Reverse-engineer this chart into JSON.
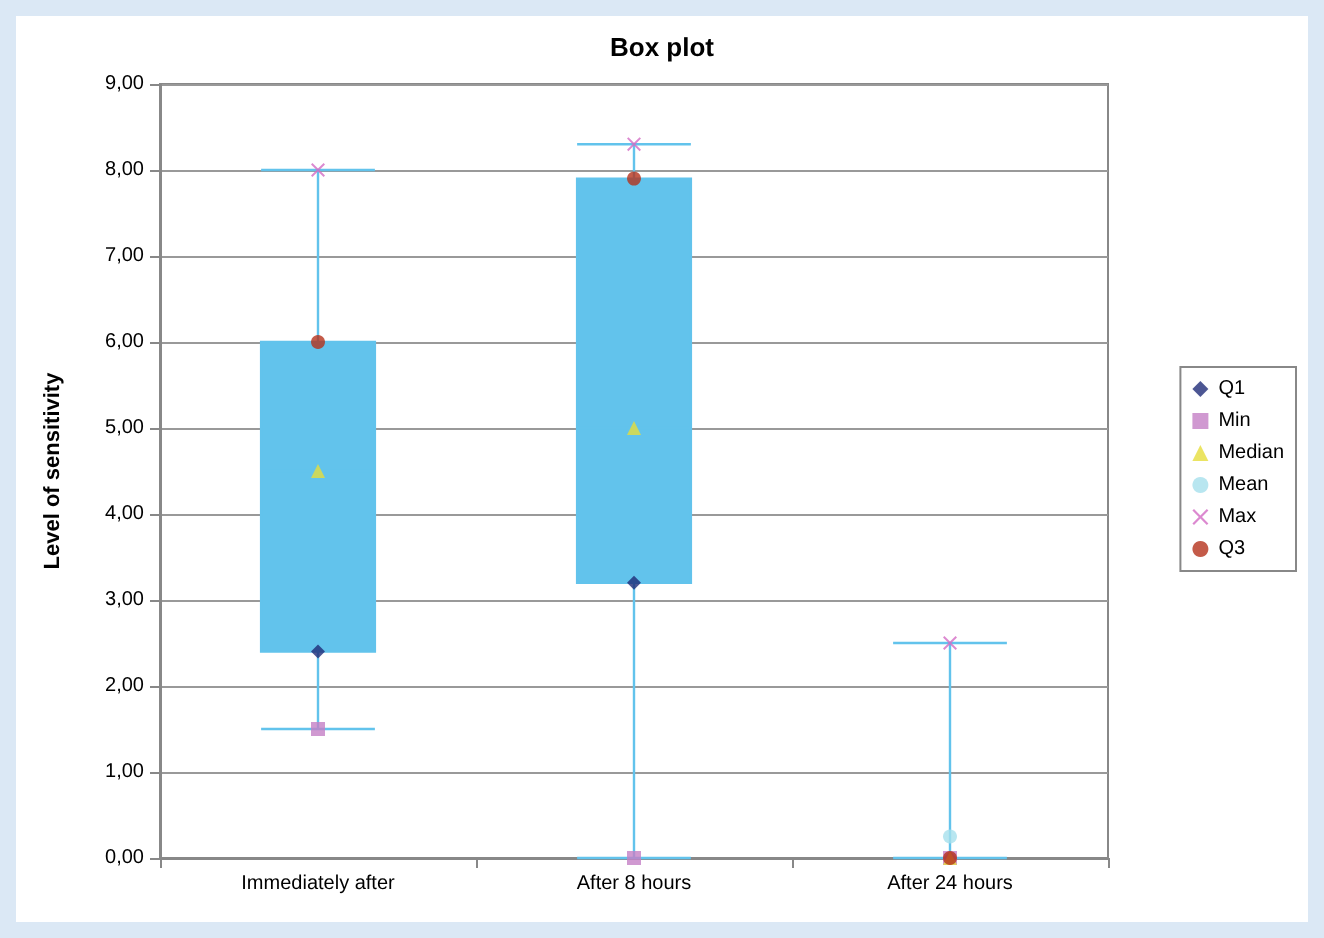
{
  "chart_data": {
    "type": "box",
    "title": "Box plot",
    "ylabel": "Level of sensitivity",
    "categories": [
      "Immediately after",
      "After 8 hours",
      "After 24 hours"
    ],
    "color": "#62c3ec",
    "boxes": [
      {
        "low": 1.5,
        "q1": 2.4,
        "median": 4.5,
        "q3": 6.0,
        "high": 8.0
      },
      {
        "low": 0,
        "q1": 3.2,
        "median": 5.0,
        "q3": 7.9,
        "high": 8.3
      },
      {
        "low": 0,
        "q1": 0,
        "median": 0,
        "q3": 0,
        "high": 2.5
      }
    ],
    "series": [
      {
        "name": "Q1",
        "type": "scatter",
        "marker": "diamond",
        "color": "#1f2c78",
        "values": [
          2.4,
          3.2,
          0
        ]
      },
      {
        "name": "Min",
        "type": "scatter",
        "marker": "square",
        "color": "#c47fc6",
        "values": [
          1.5,
          0,
          0
        ]
      },
      {
        "name": "Median",
        "type": "scatter",
        "marker": "triangle",
        "color": "#e6dd3c",
        "values": [
          4.5,
          5.0,
          0
        ]
      },
      {
        "name": "Mean",
        "type": "scatter",
        "marker": "circle",
        "color": "#a6e0ec",
        "values": [
          null,
          null,
          0.25
        ]
      },
      {
        "name": "Max",
        "type": "scatter",
        "marker": "cross",
        "color": "#d36cc4",
        "values": [
          8.0,
          8.3,
          2.5
        ]
      },
      {
        "name": "Q3",
        "type": "scatter",
        "marker": "circle",
        "color": "#b5321c",
        "values": [
          6.0,
          7.9,
          0
        ]
      }
    ],
    "ylim": [
      0,
      9
    ],
    "yticks": [
      {
        "value": 0,
        "label": "0,00"
      },
      {
        "value": 1,
        "label": "1,00"
      },
      {
        "value": 2,
        "label": "2,00"
      },
      {
        "value": 3,
        "label": "3,00"
      },
      {
        "value": 4,
        "label": "4,00"
      },
      {
        "value": 5,
        "label": "5,00"
      },
      {
        "value": 6,
        "label": "6,00"
      },
      {
        "value": 7,
        "label": "7,00"
      },
      {
        "value": 8,
        "label": "8,00"
      },
      {
        "value": 9,
        "label": "9,00"
      }
    ],
    "grid": "y",
    "legend": "right"
  }
}
